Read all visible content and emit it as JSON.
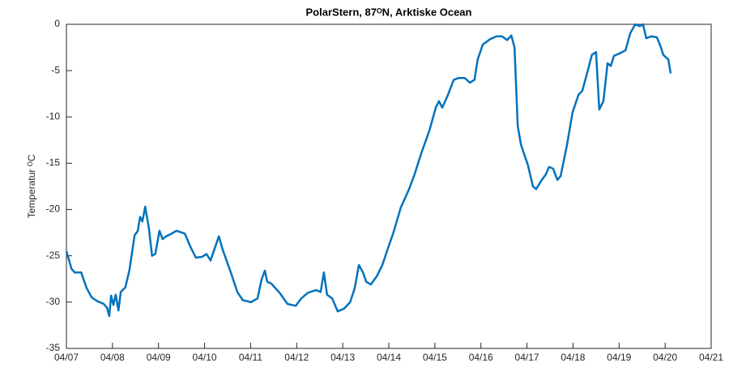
{
  "chart_data": {
    "type": "line",
    "title": "PolarStern, 87ᴼN, Arktiske Ocean",
    "y_label": "Temperatur ᴼC",
    "x": [
      7.0,
      7.11,
      7.18,
      7.32,
      7.44,
      7.55,
      7.67,
      7.81,
      7.88,
      7.93,
      7.97,
      8.02,
      8.07,
      8.13,
      8.18,
      8.28,
      8.37,
      8.48,
      8.55,
      8.6,
      8.65,
      8.71,
      8.79,
      8.86,
      8.93,
      9.02,
      9.09,
      9.16,
      9.25,
      9.39,
      9.57,
      9.69,
      9.81,
      9.95,
      10.04,
      10.13,
      10.22,
      10.31,
      10.39,
      10.57,
      10.71,
      10.83,
      11.01,
      11.15,
      11.24,
      11.31,
      11.36,
      11.45,
      11.63,
      11.8,
      11.98,
      12.1,
      12.24,
      12.42,
      12.52,
      12.59,
      12.66,
      12.77,
      12.89,
      13.03,
      13.16,
      13.26,
      13.35,
      13.44,
      13.51,
      13.61,
      13.74,
      13.86,
      13.96,
      14.1,
      14.26,
      14.44,
      14.56,
      14.7,
      14.88,
      15.02,
      15.09,
      15.16,
      15.27,
      15.41,
      15.51,
      15.65,
      15.76,
      15.86,
      15.93,
      16.04,
      16.2,
      16.34,
      16.46,
      16.57,
      16.66,
      16.73,
      16.8,
      16.87,
      17.02,
      17.13,
      17.2,
      17.31,
      17.41,
      17.48,
      17.57,
      17.66,
      17.73,
      17.87,
      17.99,
      18.12,
      18.2,
      18.31,
      18.41,
      18.5,
      18.57,
      18.66,
      18.75,
      18.82,
      18.89,
      19.03,
      19.14,
      19.24,
      19.35,
      19.45,
      19.52,
      19.59,
      19.7,
      19.82,
      19.91,
      19.96,
      20.07,
      20.12
    ],
    "series": [
      {
        "color": "#0072bd",
        "values": [
          -24.5,
          -26.4,
          -26.8,
          -26.8,
          -28.5,
          -29.5,
          -29.9,
          -30.2,
          -30.6,
          -31.5,
          -29.3,
          -30.3,
          -29.2,
          -30.9,
          -28.9,
          -28.4,
          -26.5,
          -22.8,
          -22.3,
          -20.8,
          -21.3,
          -19.7,
          -22,
          -25,
          -24.8,
          -22.3,
          -23.2,
          -22.9,
          -22.7,
          -22.3,
          -22.6,
          -24,
          -25.2,
          -25.1,
          -24.8,
          -25.5,
          -24.2,
          -22.9,
          -24.3,
          -26.8,
          -28.9,
          -29.8,
          -30,
          -29.6,
          -27.5,
          -26.6,
          -27.8,
          -28,
          -29,
          -30.2,
          -30.4,
          -29.6,
          -29,
          -28.7,
          -28.9,
          -26.8,
          -29.2,
          -29.6,
          -31,
          -30.7,
          -30,
          -28.5,
          -26,
          -26.8,
          -27.8,
          -28.1,
          -27.2,
          -26,
          -24.5,
          -22.5,
          -19.8,
          -17.8,
          -16.2,
          -14,
          -11.5,
          -9,
          -8.3,
          -9,
          -7.8,
          -6,
          -5.8,
          -5.8,
          -6.3,
          -6,
          -3.8,
          -2.2,
          -1.6,
          -1.3,
          -1.3,
          -1.7,
          -1.2,
          -2.5,
          -11,
          -13,
          -15.2,
          -17.5,
          -17.8,
          -16.9,
          -16.2,
          -15.4,
          -15.6,
          -16.8,
          -16.4,
          -13,
          -9.5,
          -7.6,
          -7.2,
          -5.2,
          -3.3,
          -3,
          -9.2,
          -8.3,
          -4.2,
          -4.5,
          -3.4,
          -3.1,
          -2.8,
          -1,
          0,
          -0.2,
          0,
          -1.5,
          -1.3,
          -1.4,
          -2.5,
          -3.3,
          -3.8,
          -5.3
        ]
      }
    ],
    "xlim": [
      7,
      21
    ],
    "xticks": [
      {
        "value": 7,
        "label": "04/07"
      },
      {
        "value": 8,
        "label": "04/08"
      },
      {
        "value": 9,
        "label": "04/09"
      },
      {
        "value": 10,
        "label": "04/10"
      },
      {
        "value": 11,
        "label": "04/11"
      },
      {
        "value": 12,
        "label": "04/12"
      },
      {
        "value": 13,
        "label": "04/13"
      },
      {
        "value": 14,
        "label": "04/14"
      },
      {
        "value": 15,
        "label": "04/15"
      },
      {
        "value": 16,
        "label": "04/16"
      },
      {
        "value": 17,
        "label": "04/17"
      },
      {
        "value": 18,
        "label": "04/18"
      },
      {
        "value": 19,
        "label": "04/19"
      },
      {
        "value": 20,
        "label": "04/20"
      },
      {
        "value": 21,
        "label": "04/21"
      }
    ],
    "ylim": [
      -35,
      0
    ],
    "yticks": [
      -35,
      -30,
      -25,
      -20,
      -15,
      -10,
      -5,
      0
    ],
    "grid": false
  }
}
